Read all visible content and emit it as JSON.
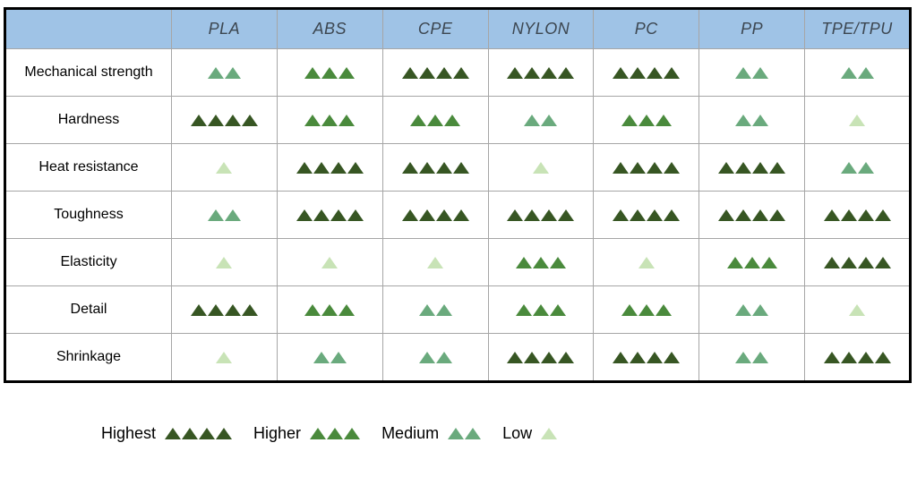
{
  "chart_data": {
    "type": "table",
    "title": "",
    "columns": [
      "PLA",
      "ABS",
      "CPE",
      "NYLON",
      "PC",
      "PP",
      "TPE/TPU"
    ],
    "rows": [
      "Mechanical strength",
      "Hardness",
      "Heat resistance",
      "Toughness",
      "Elasticity",
      "Detail",
      "Shrinkage"
    ],
    "values": [
      [
        2,
        3,
        4,
        4,
        4,
        2,
        2
      ],
      [
        4,
        3,
        3,
        2,
        3,
        2,
        1
      ],
      [
        1,
        4,
        4,
        1,
        4,
        4,
        2
      ],
      [
        2,
        4,
        4,
        4,
        4,
        4,
        4
      ],
      [
        1,
        1,
        1,
        3,
        1,
        3,
        4
      ],
      [
        4,
        3,
        2,
        3,
        3,
        2,
        1
      ],
      [
        1,
        2,
        2,
        4,
        4,
        2,
        4
      ]
    ],
    "rating_scale": {
      "4": "Highest",
      "3": "Higher",
      "2": "Medium",
      "1": "Low"
    },
    "legend_position": "bottom-left"
  },
  "legend": {
    "items": [
      {
        "label": "Highest",
        "level": 4
      },
      {
        "label": "Higher",
        "level": 3
      },
      {
        "label": "Medium",
        "level": 2
      },
      {
        "label": "Low",
        "level": 1
      }
    ]
  },
  "colors": {
    "level_4": "#375623",
    "level_3": "#4a8a3c",
    "level_2": "#6aaa7d",
    "level_1": "#c8e3b6",
    "header_bg": "#9fc3e6",
    "header_text": "#3c4650",
    "outer_border": "#000000",
    "inner_border": "#a6a6a6",
    "background": "#ffffff"
  },
  "icons": {
    "rating_marker": "triangle-up-icon"
  }
}
